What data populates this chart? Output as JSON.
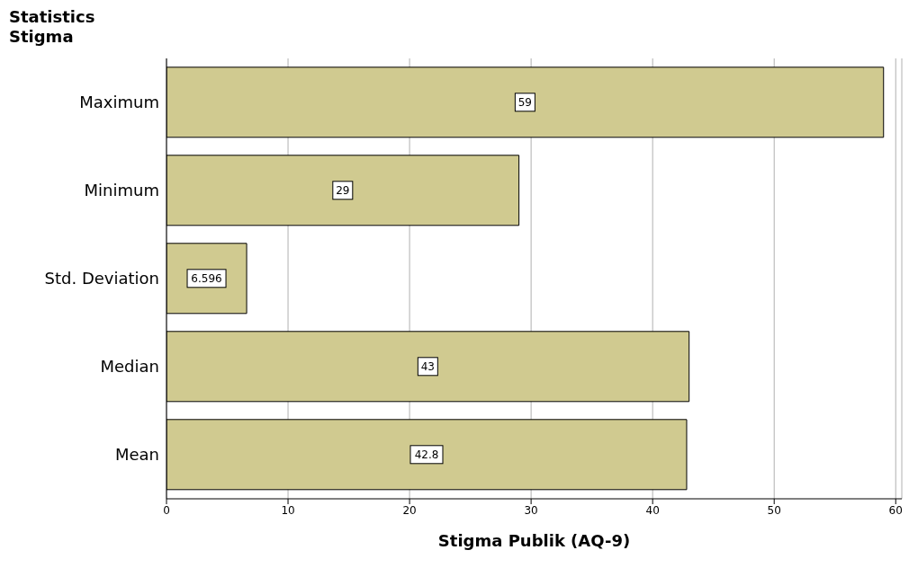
{
  "chart_data": {
    "type": "bar",
    "orientation": "horizontal",
    "title": "Statistics",
    "subtitle": "Stigma",
    "xlabel": "Stigma Publik (AQ-9)",
    "categories": [
      "Maximum",
      "Minimum",
      "Std. Deviation",
      "Median",
      "Mean"
    ],
    "values": [
      59,
      29,
      6.596,
      43,
      42.8
    ],
    "color": "#d0ca90",
    "xlim": [
      0,
      60.5
    ],
    "xticks": [
      0,
      10,
      20,
      30,
      40,
      50,
      60
    ],
    "grid": "x",
    "data_labels": true
  }
}
